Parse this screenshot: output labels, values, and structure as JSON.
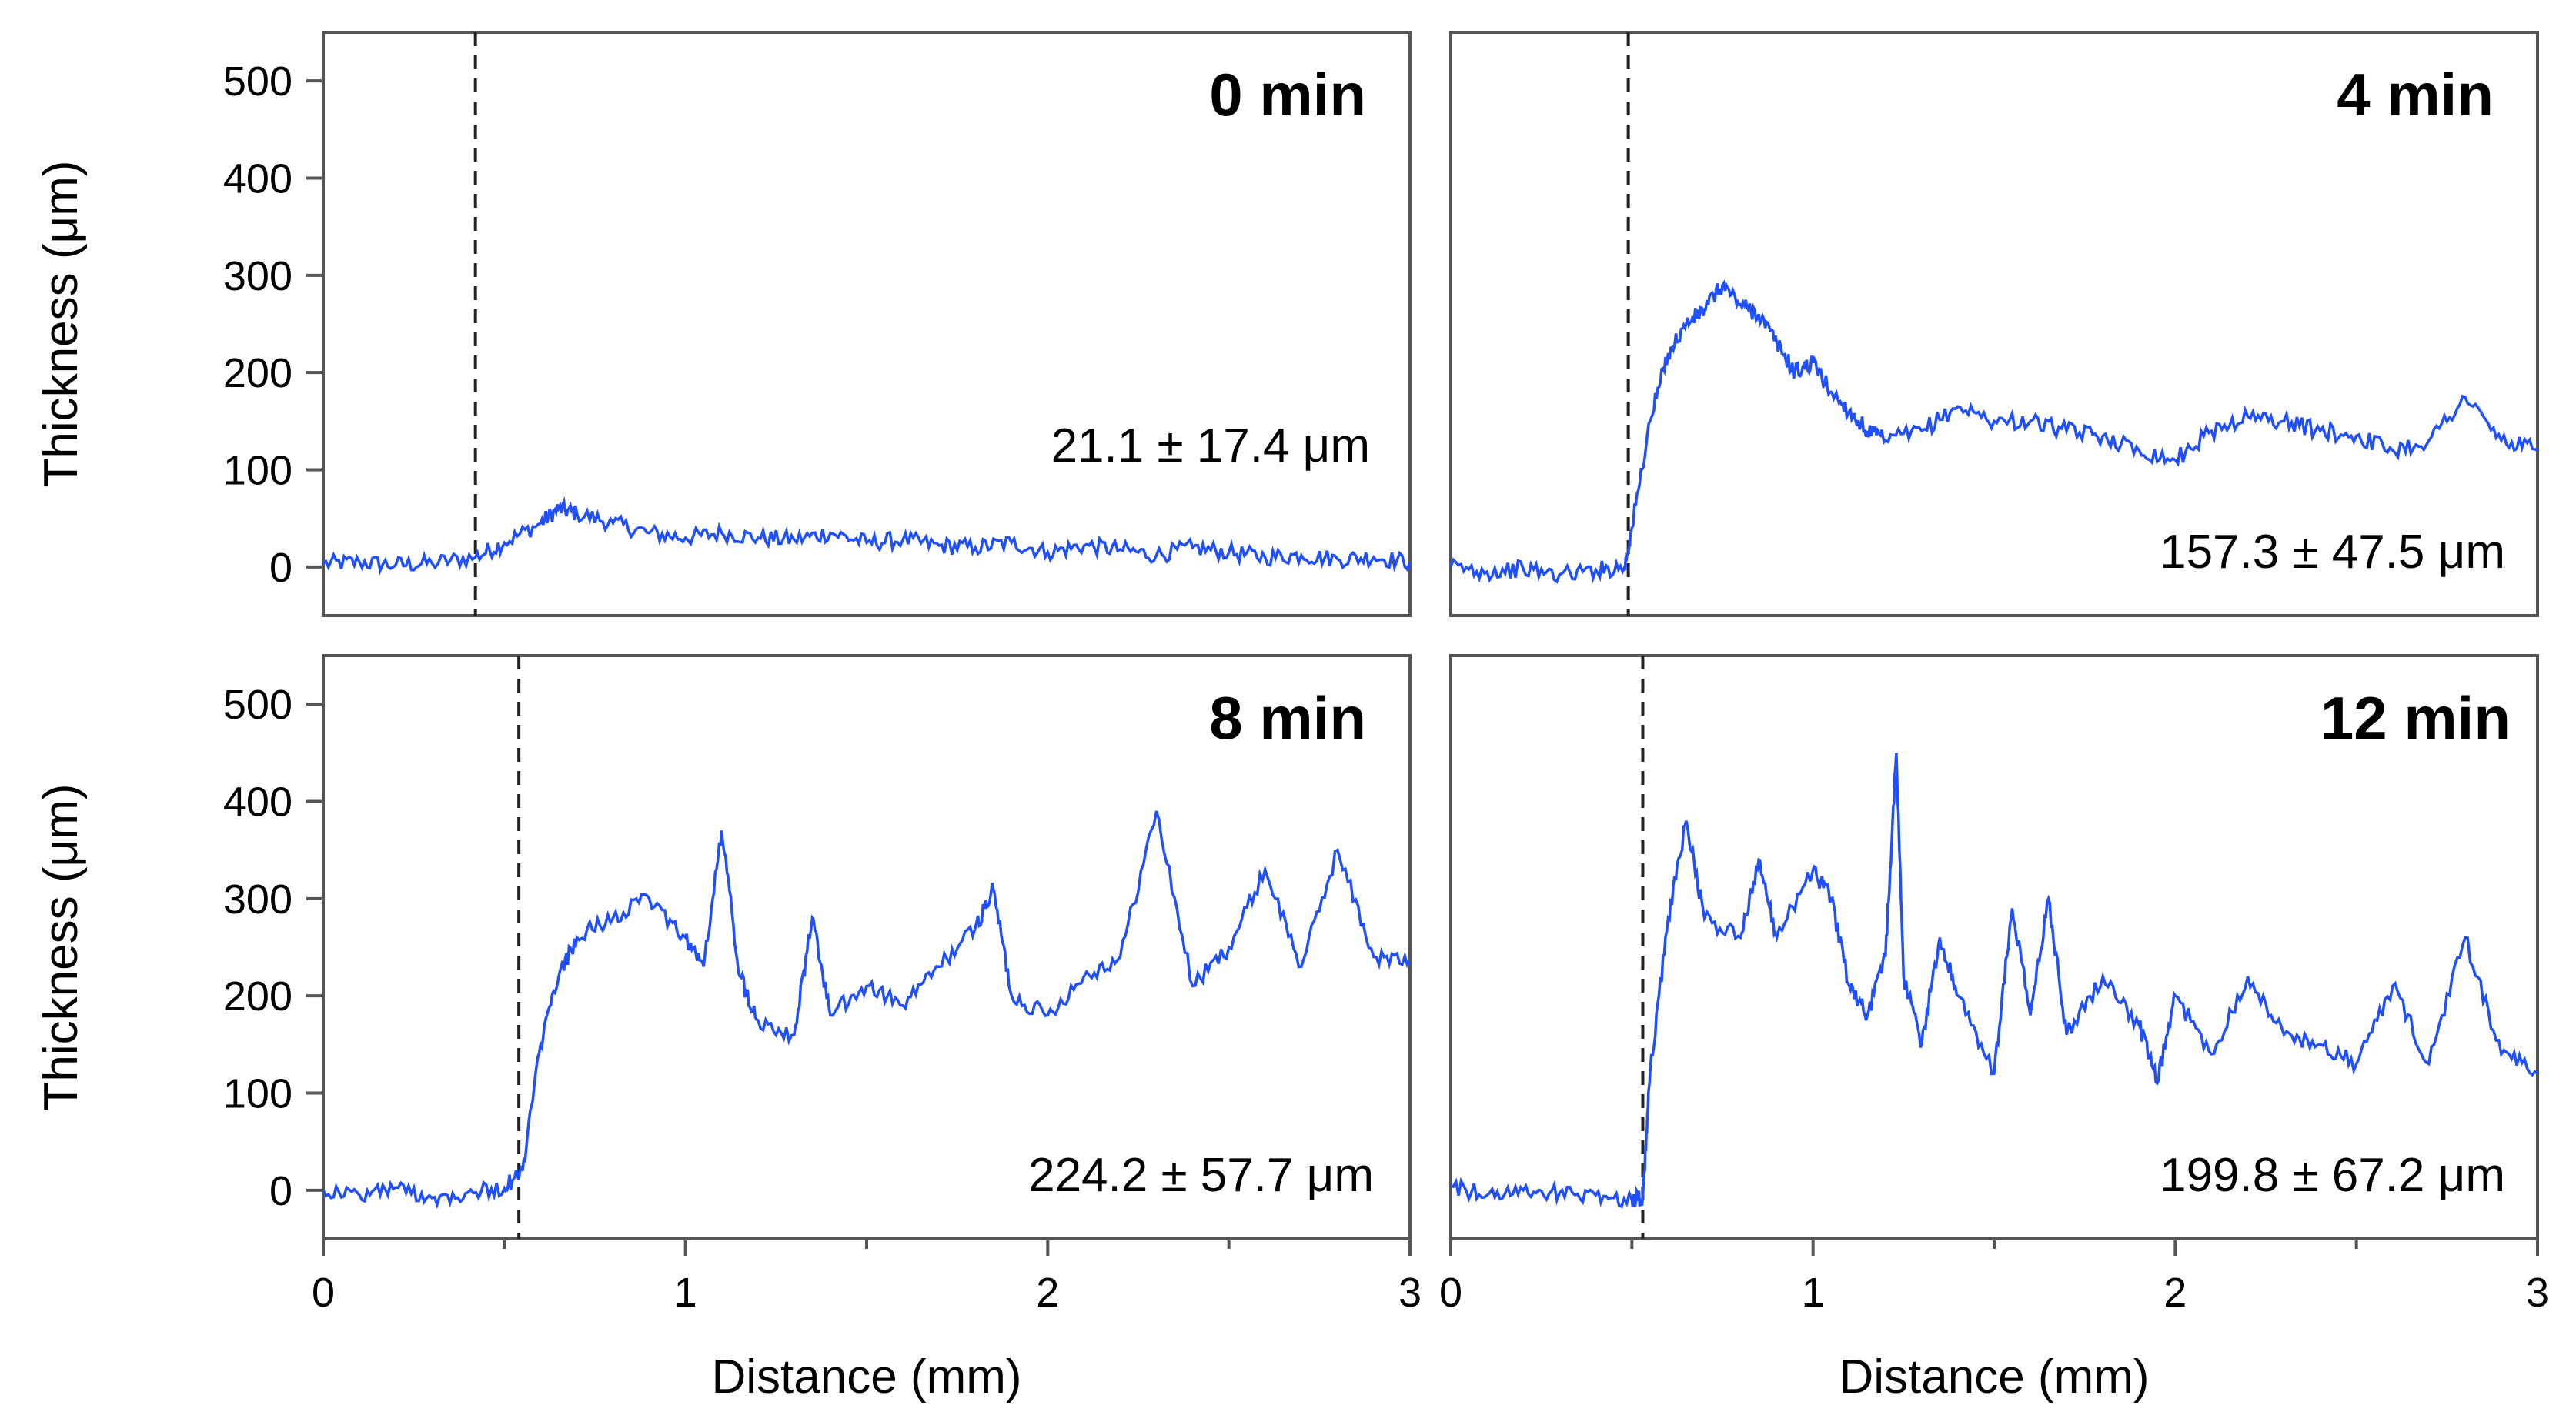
{
  "chart_data": [
    {
      "type": "line",
      "panel": "top-left",
      "title": "0 min",
      "annotation": "21.1 ± 17.4 μm",
      "xlabel": "",
      "ylabel": "Thickness (μm)",
      "xlim": [
        0,
        3
      ],
      "ylim": [
        -50,
        550
      ],
      "yticks": [
        "0",
        "100",
        "200",
        "300",
        "400",
        "500"
      ],
      "xticks": [],
      "dashed_line_x": 0.42,
      "line_color": "#1f4fff",
      "series": [
        {
          "x": [
            0,
            0.1,
            0.2,
            0.3,
            0.42,
            0.5,
            0.6,
            0.65,
            0.7,
            0.8,
            0.9,
            1.0,
            1.1,
            1.2,
            1.3,
            1.4,
            1.5,
            1.6,
            1.7,
            1.8,
            1.9,
            2.0,
            2.1,
            2.2,
            2.3,
            2.4,
            2.5,
            2.6,
            2.7,
            2.8,
            2.9,
            3.0
          ],
          "values": [
            3,
            5,
            2,
            4,
            10,
            25,
            45,
            60,
            55,
            45,
            35,
            30,
            35,
            30,
            28,
            35,
            25,
            28,
            22,
            20,
            25,
            15,
            22,
            18,
            12,
            20,
            15,
            10,
            12,
            8,
            10,
            5
          ]
        }
      ]
    },
    {
      "type": "line",
      "panel": "top-right",
      "title": "4 min",
      "annotation": "157.3 ± 47.5 μm",
      "xlabel": "",
      "ylabel": "",
      "xlim": [
        0,
        3
      ],
      "ylim": [
        -50,
        550
      ],
      "yticks": [],
      "xticks": [],
      "dashed_line_x": 0.49,
      "line_color": "#1f4fff",
      "series": [
        {
          "x": [
            0,
            0.1,
            0.2,
            0.3,
            0.4,
            0.48,
            0.5,
            0.55,
            0.6,
            0.65,
            0.7,
            0.75,
            0.8,
            0.85,
            0.9,
            0.95,
            1.0,
            1.05,
            1.1,
            1.15,
            1.2,
            1.3,
            1.4,
            1.5,
            1.6,
            1.7,
            1.8,
            1.9,
            2.0,
            2.1,
            2.2,
            2.3,
            2.4,
            2.5,
            2.6,
            2.7,
            2.8,
            2.9,
            3.0
          ],
          "values": [
            0,
            -5,
            -2,
            -8,
            -3,
            0,
            40,
            150,
            220,
            250,
            265,
            290,
            270,
            260,
            230,
            200,
            210,
            180,
            160,
            140,
            130,
            140,
            165,
            150,
            150,
            140,
            135,
            120,
            110,
            140,
            155,
            150,
            140,
            135,
            120,
            130,
            175,
            130,
            120
          ]
        }
      ]
    },
    {
      "type": "line",
      "panel": "bottom-left",
      "title": "8 min",
      "annotation": "224.2 ± 57.7 μm",
      "xlabel": "Distance (mm)",
      "ylabel": "Thickness (μm)",
      "xlim": [
        0,
        3
      ],
      "ylim": [
        -50,
        550
      ],
      "yticks": [
        "0",
        "100",
        "200",
        "300",
        "400",
        "500"
      ],
      "xticks": [
        "0",
        "1",
        "2",
        "3"
      ],
      "dashed_line_x": 0.54,
      "line_color": "#1f4fff",
      "series": [
        {
          "x": [
            0,
            0.1,
            0.2,
            0.3,
            0.4,
            0.5,
            0.55,
            0.6,
            0.65,
            0.7,
            0.8,
            0.9,
            1.0,
            1.05,
            1.1,
            1.15,
            1.2,
            1.3,
            1.35,
            1.4,
            1.5,
            1.6,
            1.7,
            1.8,
            1.85,
            1.9,
            2.0,
            2.1,
            2.2,
            2.3,
            2.4,
            2.5,
            2.6,
            2.7,
            2.8,
            2.9,
            3.0
          ],
          "values": [
            0,
            -5,
            3,
            -8,
            -2,
            2,
            20,
            150,
            220,
            260,
            280,
            300,
            260,
            230,
            370,
            220,
            175,
            160,
            280,
            180,
            210,
            190,
            230,
            270,
            310,
            200,
            180,
            220,
            240,
            390,
            210,
            250,
            330,
            230,
            350,
            240,
            235
          ]
        }
      ]
    },
    {
      "type": "line",
      "panel": "bottom-right",
      "title": "12 min",
      "annotation": "199.8 ± 67.2 μm",
      "xlabel": "Distance (mm)",
      "ylabel": "",
      "xlim": [
        0,
        3
      ],
      "ylim": [
        -50,
        550
      ],
      "yticks": [],
      "xticks": [
        "0",
        "1",
        "2",
        "3"
      ],
      "dashed_line_x": 0.53,
      "line_color": "#1f4fff",
      "series": [
        {
          "x": [
            0,
            0.1,
            0.2,
            0.3,
            0.4,
            0.5,
            0.53,
            0.55,
            0.6,
            0.65,
            0.7,
            0.8,
            0.85,
            0.9,
            1.0,
            1.05,
            1.1,
            1.15,
            1.2,
            1.23,
            1.25,
            1.3,
            1.35,
            1.4,
            1.5,
            1.55,
            1.6,
            1.65,
            1.7,
            1.8,
            1.9,
            1.95,
            2.0,
            2.1,
            2.2,
            2.3,
            2.4,
            2.5,
            2.6,
            2.7,
            2.8,
            2.9,
            3.0
          ],
          "values": [
            5,
            -5,
            0,
            -3,
            -5,
            -10,
            -8,
            120,
            280,
            380,
            280,
            260,
            340,
            260,
            330,
            300,
            210,
            180,
            240,
            450,
            220,
            150,
            260,
            200,
            120,
            290,
            180,
            300,
            160,
            220,
            170,
            110,
            200,
            140,
            220,
            160,
            150,
            130,
            210,
            130,
            260,
            140,
            120
          ]
        }
      ]
    }
  ]
}
